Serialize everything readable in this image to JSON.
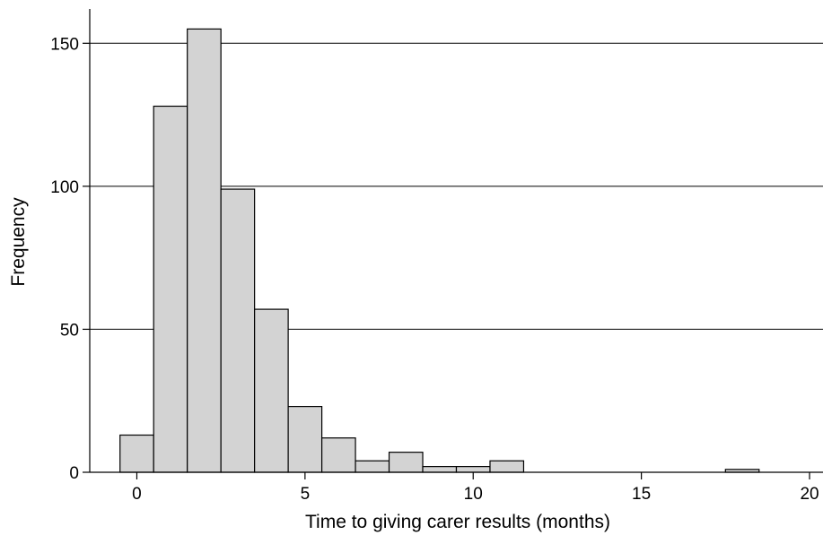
{
  "chart_data": {
    "type": "bar",
    "subtype": "histogram",
    "title": "",
    "xlabel": "Time to giving carer results (months)",
    "ylabel": "Frequency",
    "bin_width": 1,
    "bins": [
      {
        "x": 0,
        "value": 13
      },
      {
        "x": 1,
        "value": 128
      },
      {
        "x": 2,
        "value": 155
      },
      {
        "x": 3,
        "value": 99
      },
      {
        "x": 4,
        "value": 57
      },
      {
        "x": 5,
        "value": 23
      },
      {
        "x": 6,
        "value": 12
      },
      {
        "x": 7,
        "value": 4
      },
      {
        "x": 8,
        "value": 7
      },
      {
        "x": 9,
        "value": 2
      },
      {
        "x": 10,
        "value": 2
      },
      {
        "x": 11,
        "value": 4
      },
      {
        "x": 18,
        "value": 1
      }
    ],
    "xlim": [
      -1.4,
      20.4
    ],
    "ylim": [
      0,
      160
    ],
    "xticks": [
      0,
      5,
      10,
      15,
      20
    ],
    "xtick_labels": [
      "0",
      "5",
      "10",
      "15",
      "20"
    ],
    "yticks": [
      0,
      50,
      100,
      150
    ],
    "ytick_labels": [
      "0",
      "50",
      "100",
      "150"
    ],
    "grid": "horizontal",
    "legend": "none",
    "colors": {
      "bar_fill": "#d3d3d3",
      "bar_edge": "#000000",
      "grid": "#000000"
    }
  }
}
